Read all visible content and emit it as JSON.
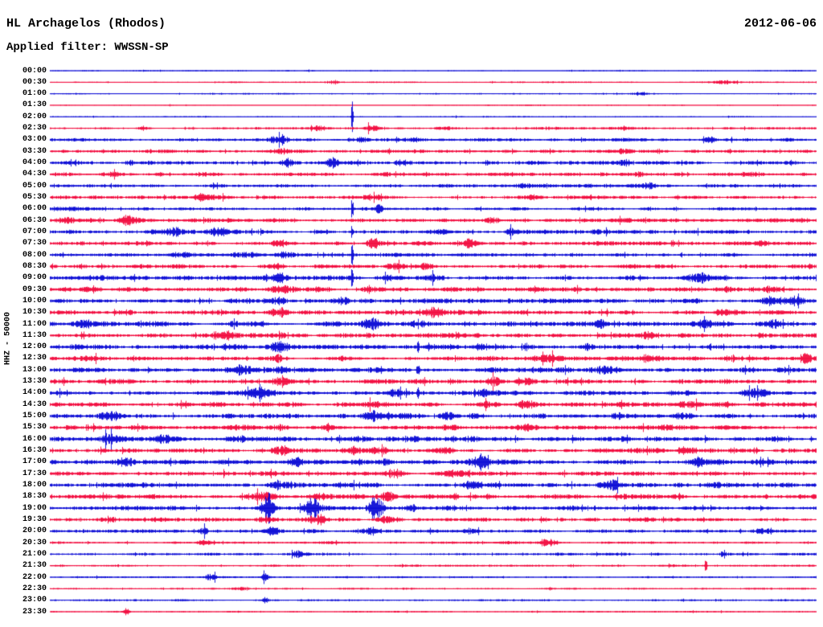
{
  "header": {
    "station": "HL Archagelos (Rhodos)",
    "date": "2012-06-06",
    "filter": "Applied filter: WWSSN-SP"
  },
  "axis": {
    "scale_label": "HHZ - 50000"
  },
  "chart_data": {
    "type": "line",
    "subtype": "helicorder-seismogram",
    "station": "HL Archagelos (Rhodos)",
    "date": "2012-06-06",
    "filter": "WWSSN-SP",
    "channel_scale_label": "HHZ - 50000",
    "minutes_per_row": 30,
    "legend_position": "none",
    "grid": false,
    "colors": {
      "blue": "#0000d4",
      "red": "#f20238"
    },
    "rows": [
      {
        "time": "00:00",
        "color": "blue",
        "base": 0.5,
        "bursts": []
      },
      {
        "time": "00:30",
        "color": "red",
        "base": 0.6,
        "bursts": [
          [
            0.37,
            2.6,
            0.006
          ],
          [
            0.88,
            1.6,
            0.015
          ]
        ]
      },
      {
        "time": "01:00",
        "color": "blue",
        "base": 0.6,
        "bursts": [
          [
            0.77,
            1.8,
            0.01
          ]
        ]
      },
      {
        "time": "01:30",
        "color": "red",
        "base": 0.45,
        "bursts": []
      },
      {
        "time": "02:00",
        "color": "blue",
        "base": 0.55,
        "bursts": [
          [
            0.394,
            18,
            0.0012
          ]
        ]
      },
      {
        "time": "02:30",
        "color": "red",
        "base": 1.1,
        "bursts": [
          [
            0.12,
            2,
            0.01
          ],
          [
            0.35,
            1.6,
            0.01
          ],
          [
            0.42,
            2.6,
            0.008
          ],
          [
            0.52,
            2,
            0.01
          ]
        ]
      },
      {
        "time": "03:00",
        "color": "blue",
        "base": 1.4,
        "bursts": [
          [
            0.3,
            2.6,
            0.01
          ],
          [
            0.4,
            3,
            0.012
          ],
          [
            0.47,
            2,
            0.01
          ],
          [
            0.86,
            1.8,
            0.008
          ]
        ]
      },
      {
        "time": "03:30",
        "color": "red",
        "base": 1.5,
        "bursts": [
          [
            0.13,
            2.2,
            0.012
          ],
          [
            0.3,
            2,
            0.01
          ],
          [
            0.75,
            2,
            0.015
          ]
        ]
      },
      {
        "time": "04:00",
        "color": "blue",
        "base": 1.7,
        "bursts": [
          [
            0.1,
            2.5,
            0.01
          ],
          [
            0.31,
            3,
            0.01
          ],
          [
            0.37,
            3.5,
            0.008
          ],
          [
            0.46,
            2.5,
            0.01
          ],
          [
            0.75,
            2.2,
            0.012
          ]
        ]
      },
      {
        "time": "04:30",
        "color": "red",
        "base": 1.7,
        "bursts": [
          [
            0.09,
            3.8,
            0.014
          ],
          [
            0.2,
            2.5,
            0.012
          ],
          [
            0.77,
            2.5,
            0.01
          ],
          [
            0.92,
            3,
            0.012
          ]
        ]
      },
      {
        "time": "05:00",
        "color": "blue",
        "base": 1.5,
        "bursts": [
          [
            0.21,
            2.5,
            0.012
          ],
          [
            0.45,
            2,
            0.01
          ],
          [
            0.62,
            2,
            0.01
          ],
          [
            0.78,
            2.2,
            0.012
          ]
        ]
      },
      {
        "time": "05:30",
        "color": "red",
        "base": 1.5,
        "bursts": [
          [
            0.2,
            2.8,
            0.014
          ],
          [
            0.42,
            2.2,
            0.01
          ],
          [
            0.63,
            1.8,
            0.008
          ]
        ]
      },
      {
        "time": "06:00",
        "color": "blue",
        "base": 1.5,
        "bursts": [
          [
            0.394,
            14,
            0.0012
          ],
          [
            0.43,
            3,
            0.006
          ],
          [
            0.78,
            2.5,
            0.01
          ]
        ]
      },
      {
        "time": "06:30",
        "color": "red",
        "base": 1.7,
        "bursts": [
          [
            0.02,
            3,
            0.012
          ],
          [
            0.1,
            2.5,
            0.012
          ],
          [
            0.58,
            3,
            0.01
          ],
          [
            0.75,
            2.2,
            0.012
          ]
        ]
      },
      {
        "time": "07:00",
        "color": "blue",
        "base": 1.8,
        "bursts": [
          [
            0.16,
            3,
            0.02
          ],
          [
            0.22,
            3,
            0.014
          ],
          [
            0.394,
            13,
            0.0012
          ],
          [
            0.6,
            3.5,
            0.01
          ]
        ]
      },
      {
        "time": "07:30",
        "color": "red",
        "base": 1.8,
        "bursts": [
          [
            0.3,
            2.5,
            0.012
          ],
          [
            0.42,
            3.5,
            0.01
          ],
          [
            0.55,
            2.5,
            0.012
          ],
          [
            0.93,
            2,
            0.01
          ]
        ]
      },
      {
        "time": "08:00",
        "color": "blue",
        "base": 1.6,
        "bursts": [
          [
            0.17,
            2.8,
            0.012
          ],
          [
            0.25,
            3,
            0.012
          ],
          [
            0.31,
            2.5,
            0.01
          ],
          [
            0.394,
            12,
            0.0012
          ]
        ]
      },
      {
        "time": "08:30",
        "color": "red",
        "base": 1.8,
        "bursts": [
          [
            0.3,
            2.5,
            0.012
          ],
          [
            0.45,
            3.5,
            0.01
          ],
          [
            0.49,
            3,
            0.008
          ]
        ]
      },
      {
        "time": "09:00",
        "color": "blue",
        "base": 2,
        "bursts": [
          [
            0.3,
            3,
            0.012
          ],
          [
            0.394,
            9,
            0.0012
          ],
          [
            0.44,
            3,
            0.01
          ],
          [
            0.5,
            2.5,
            0.01
          ],
          [
            0.85,
            2.5,
            0.012
          ]
        ]
      },
      {
        "time": "09:30",
        "color": "red",
        "base": 2,
        "bursts": [
          [
            0.3,
            3.5,
            0.012
          ],
          [
            0.35,
            3,
            0.01
          ],
          [
            0.42,
            2.8,
            0.01
          ],
          [
            0.88,
            2.5,
            0.01
          ],
          [
            0.94,
            3.2,
            0.008
          ]
        ]
      },
      {
        "time": "10:00",
        "color": "blue",
        "base": 2,
        "bursts": [
          [
            0.3,
            3,
            0.012
          ],
          [
            0.38,
            2.5,
            0.01
          ],
          [
            0.96,
            6,
            0.02
          ]
        ]
      },
      {
        "time": "10:30",
        "color": "red",
        "base": 2,
        "bursts": [
          [
            0.1,
            2.5,
            0.012
          ],
          [
            0.3,
            2.8,
            0.012
          ],
          [
            0.5,
            2.5,
            0.012
          ],
          [
            0.88,
            2.8,
            0.01
          ]
        ]
      },
      {
        "time": "11:00",
        "color": "blue",
        "base": 2.1,
        "bursts": [
          [
            0.04,
            3,
            0.01
          ],
          [
            0.25,
            2.8,
            0.012
          ],
          [
            0.42,
            2.8,
            0.012
          ],
          [
            0.72,
            2.5,
            0.01
          ],
          [
            0.85,
            3,
            0.012
          ],
          [
            0.94,
            3.4,
            0.01
          ]
        ]
      },
      {
        "time": "11:30",
        "color": "red",
        "base": 2,
        "bursts": [
          [
            0.23,
            3,
            0.012
          ],
          [
            0.3,
            2.8,
            0.01
          ],
          [
            0.42,
            2.5,
            0.01
          ],
          [
            0.78,
            3,
            0.012
          ],
          [
            0.93,
            2.8,
            0.01
          ]
        ]
      },
      {
        "time": "12:00",
        "color": "blue",
        "base": 2.1,
        "bursts": [
          [
            0.04,
            3.2,
            0.01
          ],
          [
            0.3,
            2.8,
            0.012
          ],
          [
            0.48,
            10,
            0.0012
          ],
          [
            0.56,
            3,
            0.01
          ],
          [
            0.7,
            2.5,
            0.01
          ]
        ]
      },
      {
        "time": "12:30",
        "color": "red",
        "base": 2,
        "bursts": [
          [
            0.3,
            2.8,
            0.012
          ],
          [
            0.38,
            2.5,
            0.01
          ],
          [
            0.65,
            2.8,
            0.012
          ],
          [
            0.78,
            3.2,
            0.012
          ],
          [
            0.985,
            4,
            0.006
          ]
        ]
      },
      {
        "time": "13:00",
        "color": "blue",
        "base": 2.1,
        "bursts": [
          [
            0.25,
            3,
            0.012
          ],
          [
            0.3,
            2.8,
            0.01
          ],
          [
            0.48,
            12,
            0.0015
          ],
          [
            0.63,
            2.8,
            0.012
          ],
          [
            0.72,
            2.5,
            0.01
          ]
        ]
      },
      {
        "time": "13:30",
        "color": "red",
        "base": 2,
        "bursts": [
          [
            0.3,
            2.8,
            0.012
          ],
          [
            0.58,
            3,
            0.01
          ],
          [
            0.62,
            2.8,
            0.01
          ]
        ]
      },
      {
        "time": "14:00",
        "color": "blue",
        "base": 2.1,
        "bursts": [
          [
            0.27,
            3,
            0.012
          ],
          [
            0.45,
            2.8,
            0.01
          ],
          [
            0.48,
            9,
            0.0012
          ],
          [
            0.57,
            3,
            0.01
          ],
          [
            0.92,
            3,
            0.012
          ]
        ]
      },
      {
        "time": "14:30",
        "color": "red",
        "base": 2,
        "bursts": [
          [
            0.42,
            2.8,
            0.012
          ],
          [
            0.57,
            2.5,
            0.01
          ],
          [
            0.62,
            3,
            0.012
          ],
          [
            0.83,
            3.2,
            0.012
          ],
          [
            0.88,
            3.5,
            0.01
          ]
        ]
      },
      {
        "time": "15:00",
        "color": "blue",
        "base": 2.1,
        "bursts": [
          [
            0.08,
            3.2,
            0.012
          ],
          [
            0.42,
            2.8,
            0.012
          ],
          [
            0.52,
            3,
            0.01
          ],
          [
            0.55,
            2.8,
            0.01
          ],
          [
            0.75,
            2.8,
            0.012
          ],
          [
            0.83,
            3,
            0.012
          ]
        ]
      },
      {
        "time": "15:30",
        "color": "red",
        "base": 2,
        "bursts": [
          [
            0.3,
            2.8,
            0.012
          ],
          [
            0.36,
            3.5,
            0.01
          ],
          [
            0.52,
            3,
            0.012
          ],
          [
            0.62,
            2.8,
            0.012
          ]
        ]
      },
      {
        "time": "16:00",
        "color": "blue",
        "base": 2.1,
        "bursts": [
          [
            0.08,
            3.5,
            0.014
          ],
          [
            0.15,
            3,
            0.012
          ],
          [
            0.52,
            3,
            0.012
          ],
          [
            0.55,
            2.8,
            0.01
          ]
        ]
      },
      {
        "time": "16:30",
        "color": "red",
        "base": 2,
        "bursts": [
          [
            0.3,
            2.8,
            0.012
          ],
          [
            0.4,
            2.8,
            0.012
          ],
          [
            0.43,
            3,
            0.01
          ],
          [
            0.52,
            3,
            0.012
          ],
          [
            0.83,
            3.4,
            0.012
          ]
        ]
      },
      {
        "time": "17:00",
        "color": "blue",
        "base": 2.2,
        "bursts": [
          [
            0.1,
            3.2,
            0.012
          ],
          [
            0.32,
            3,
            0.012
          ],
          [
            0.43,
            3.5,
            0.012
          ],
          [
            0.56,
            5,
            0.012
          ],
          [
            0.85,
            3,
            0.012
          ],
          [
            0.93,
            3.2,
            0.012
          ]
        ]
      },
      {
        "time": "17:30",
        "color": "red",
        "base": 2,
        "bursts": [
          [
            0.3,
            2.8,
            0.012
          ],
          [
            0.45,
            3,
            0.012
          ],
          [
            0.52,
            3.2,
            0.012
          ]
        ]
      },
      {
        "time": "18:00",
        "color": "blue",
        "base": 2.1,
        "bursts": [
          [
            0.3,
            3,
            0.012
          ],
          [
            0.55,
            3,
            0.012
          ],
          [
            0.73,
            5,
            0.012
          ],
          [
            0.87,
            3,
            0.012
          ]
        ]
      },
      {
        "time": "18:30",
        "color": "red",
        "base": 2,
        "bursts": [
          [
            0.28,
            3,
            0.012
          ],
          [
            0.35,
            2.8,
            0.012
          ],
          [
            0.44,
            3,
            0.012
          ],
          [
            0.57,
            3,
            0.012
          ]
        ]
      },
      {
        "time": "19:00",
        "color": "blue",
        "base": 1.9,
        "bursts": [
          [
            0.285,
            12,
            0.008
          ],
          [
            0.34,
            13,
            0.01
          ],
          [
            0.425,
            11,
            0.009
          ],
          [
            0.47,
            4,
            0.01
          ]
        ]
      },
      {
        "time": "19:30",
        "color": "red",
        "base": 1.7,
        "bursts": [
          [
            0.28,
            3,
            0.012
          ],
          [
            0.35,
            3,
            0.012
          ],
          [
            0.44,
            3,
            0.012
          ],
          [
            0.95,
            3.5,
            0.01
          ]
        ]
      },
      {
        "time": "20:00",
        "color": "blue",
        "base": 1.5,
        "bursts": [
          [
            0.2,
            3.5,
            0.006
          ],
          [
            0.29,
            3,
            0.01
          ],
          [
            0.42,
            3,
            0.008
          ],
          [
            0.55,
            2.5,
            0.01
          ],
          [
            0.93,
            3.5,
            0.01
          ]
        ]
      },
      {
        "time": "20:30",
        "color": "red",
        "base": 1.2,
        "bursts": [
          [
            0.2,
            3.5,
            0.008
          ],
          [
            0.65,
            2,
            0.01
          ]
        ]
      },
      {
        "time": "21:00",
        "color": "blue",
        "base": 1.2,
        "bursts": [
          [
            0.32,
            2.2,
            0.01
          ],
          [
            0.75,
            2,
            0.01
          ],
          [
            0.88,
            2.5,
            0.008
          ]
        ]
      },
      {
        "time": "21:30",
        "color": "red",
        "base": 0.9,
        "bursts": [
          [
            0.855,
            14,
            0.0015
          ]
        ]
      },
      {
        "time": "22:00",
        "color": "blue",
        "base": 0.9,
        "bursts": [
          [
            0.21,
            2.5,
            0.008
          ],
          [
            0.28,
            4.5,
            0.005
          ]
        ]
      },
      {
        "time": "22:30",
        "color": "red",
        "base": 0.8,
        "bursts": [
          [
            0.25,
            2.2,
            0.008
          ]
        ]
      },
      {
        "time": "23:00",
        "color": "blue",
        "base": 0.8,
        "bursts": [
          [
            0.28,
            4.5,
            0.004
          ]
        ]
      },
      {
        "time": "23:30",
        "color": "red",
        "base": 0.7,
        "bursts": [
          [
            0.1,
            3.2,
            0.004
          ]
        ]
      }
    ]
  }
}
